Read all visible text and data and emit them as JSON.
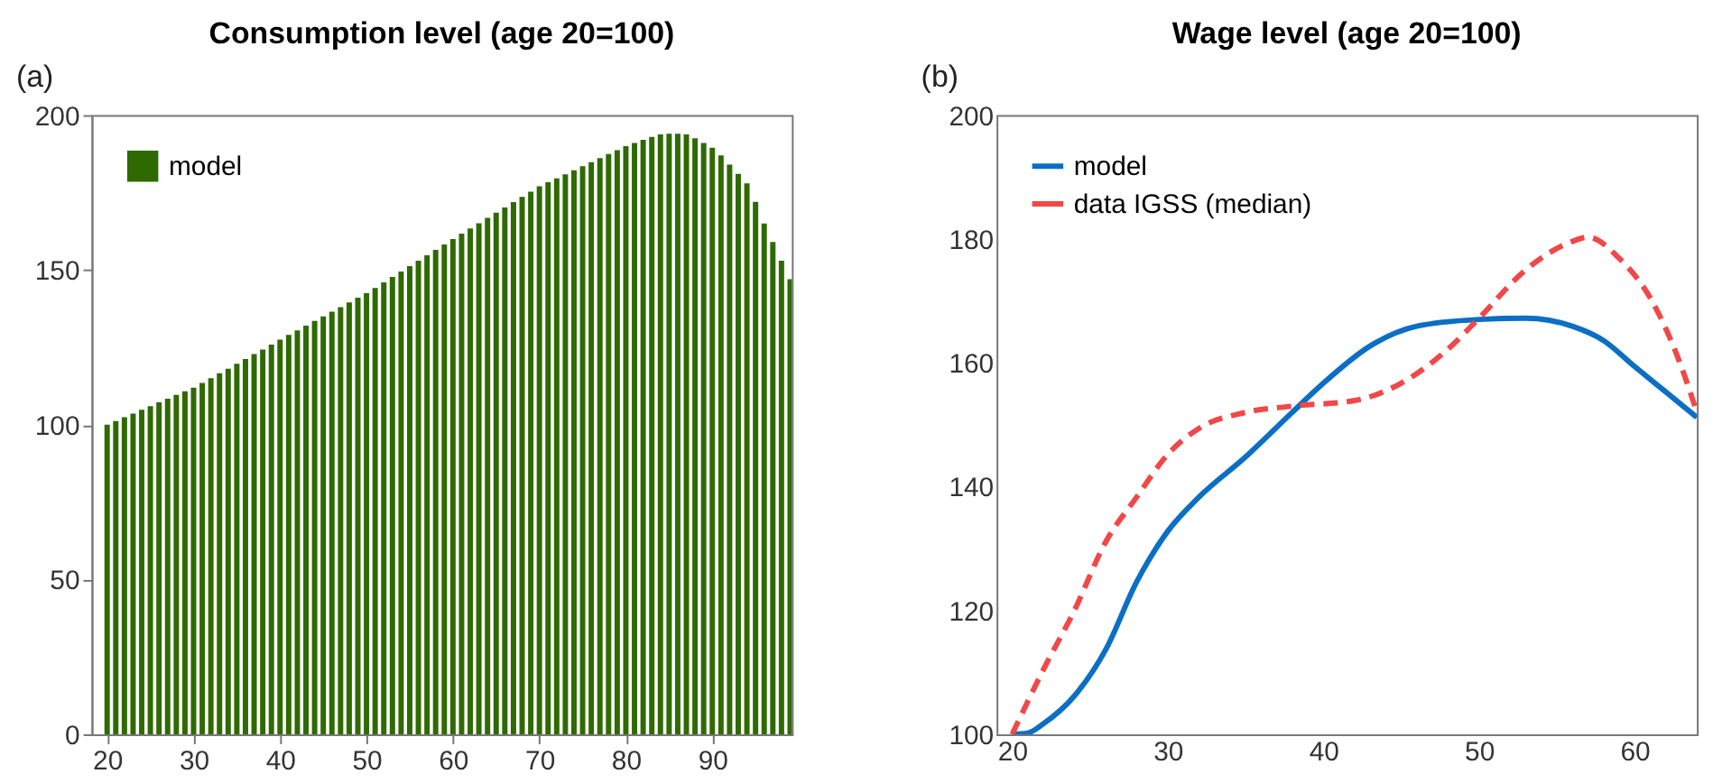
{
  "chart_data": [
    {
      "type": "bar",
      "title": "Consumption level (age 20=100)",
      "annotations": [
        "(a)"
      ],
      "x": [
        20,
        21,
        22,
        23,
        24,
        25,
        26,
        27,
        28,
        29,
        30,
        31,
        32,
        33,
        34,
        35,
        36,
        37,
        38,
        39,
        40,
        41,
        42,
        43,
        44,
        45,
        46,
        47,
        48,
        49,
        50,
        51,
        52,
        53,
        54,
        55,
        56,
        57,
        58,
        59,
        60,
        61,
        62,
        63,
        64,
        65,
        66,
        67,
        68,
        69,
        70,
        71,
        72,
        73,
        74,
        75,
        76,
        77,
        78,
        79,
        80,
        81,
        82,
        83,
        84,
        85,
        86,
        87,
        88,
        89,
        90,
        91,
        92,
        93,
        94,
        95,
        96,
        97,
        98,
        99
      ],
      "series": [
        {
          "name": "model",
          "color": "#2f6a00",
          "values": [
            100,
            101.2,
            102.4,
            103.6,
            104.8,
            106,
            107.2,
            108.4,
            109.6,
            110.8,
            112,
            113.5,
            115,
            116.6,
            118.1,
            119.7,
            121.2,
            122.8,
            124.3,
            125.9,
            127.5,
            129,
            130.5,
            132,
            133.5,
            135,
            136.5,
            138,
            139.5,
            141,
            142.5,
            144.2,
            146,
            147.7,
            149.5,
            151.2,
            153,
            154.7,
            156.5,
            158.2,
            160,
            161.7,
            163.4,
            165.1,
            166.8,
            168.5,
            170.2,
            171.9,
            173.6,
            175.3,
            177,
            178.3,
            179.6,
            180.9,
            182.2,
            183.5,
            184.8,
            186.1,
            187.4,
            188.7,
            190,
            191,
            192,
            193,
            193.8,
            194,
            194,
            193.8,
            192.5,
            191,
            189.5,
            187,
            184,
            181,
            178,
            172,
            165,
            159,
            153,
            147
          ]
        }
      ],
      "xlim": [
        18.2,
        99.2
      ],
      "xticks": [
        20,
        30,
        40,
        50,
        60,
        70,
        80,
        90
      ],
      "ylim": [
        0,
        200
      ],
      "yticks": [
        0,
        50,
        100,
        150,
        200
      ],
      "grid": false,
      "legend": "top left"
    },
    {
      "type": "line",
      "title": "Wage level (age 20=100)",
      "annotations": [
        "(b)"
      ],
      "series": [
        {
          "name": "model",
          "color": "#0b6fc4",
          "line_style": "solid",
          "x": [
            20,
            21,
            22,
            24,
            26,
            28,
            30,
            32,
            35,
            38,
            40,
            43,
            46,
            50,
            53,
            56,
            58,
            60,
            62,
            64
          ],
          "values": [
            100,
            100.2,
            101.7,
            106.2,
            113.6,
            124.6,
            132.8,
            138.3,
            144.8,
            152,
            156.7,
            162.7,
            165.9,
            167,
            167.2,
            165.9,
            163.6,
            159.4,
            155.3,
            151.2
          ]
        },
        {
          "name": "data IGSS (median)",
          "color": "#f04848",
          "line_style": "dashed",
          "x": [
            20,
            22,
            24,
            26,
            28,
            30,
            32,
            35,
            38,
            42,
            45,
            48,
            50,
            53,
            56,
            57,
            59,
            61,
            63,
            64
          ],
          "values": [
            100,
            110.4,
            120,
            131,
            138.3,
            145.2,
            149.4,
            152,
            153,
            153.9,
            156.7,
            162.2,
            167.2,
            175,
            179.6,
            180.3,
            176.9,
            170.5,
            159.4,
            152
          ]
        }
      ],
      "xlim": [
        19,
        64
      ],
      "xticks": [
        20,
        30,
        40,
        50,
        60
      ],
      "ylim": [
        100,
        200
      ],
      "yticks": [
        100,
        120,
        140,
        160,
        180,
        200
      ],
      "grid": false,
      "legend": "top left"
    }
  ]
}
